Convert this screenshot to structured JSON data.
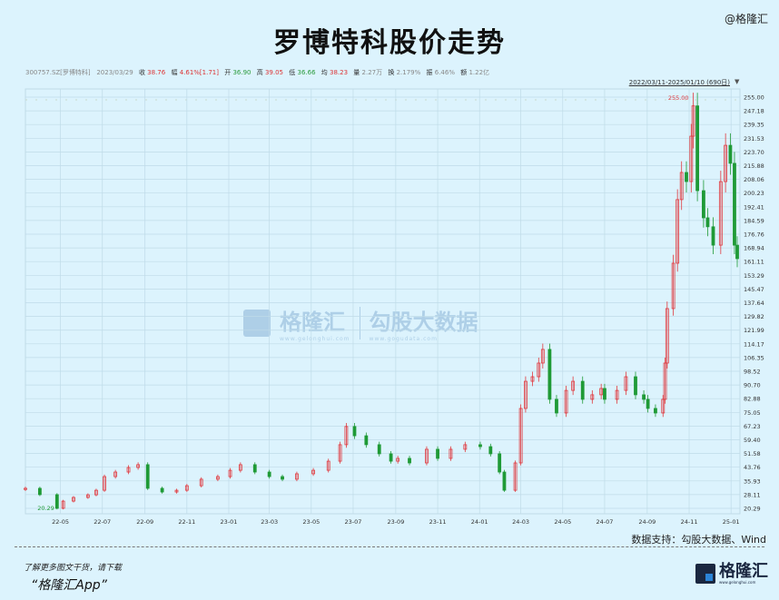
{
  "header": {
    "title": "罗博特科股价走势",
    "brand": "@格隆汇"
  },
  "info": {
    "code": "300757.SZ[罗博特科]",
    "date": "2023/03/29",
    "close_label": "收",
    "close": "38.76",
    "change_label": "幅",
    "change": "4.61%[1.71]",
    "open_label": "开",
    "open": "36.90",
    "high_label": "高",
    "high": "39.05",
    "low_label": "低",
    "low": "36.66",
    "avg_label": "均",
    "avg": "38.23",
    "vol_label": "量",
    "vol": "2.27万",
    "turnover_label": "换",
    "turnover": "2.179%",
    "amp_label": "振",
    "amp": "6.46%",
    "amount_label": "额",
    "amount": "1.22亿"
  },
  "range": {
    "label": "2022/03/11-2025/01/10 (690日)"
  },
  "watermark": {
    "brand": "格隆汇",
    "brand_url": "www.gelonghui.com",
    "partner": "勾股大数据",
    "partner_url": "www.gogudata.com"
  },
  "footer": {
    "source": "数据支持：勾股大数据、Wind",
    "promo": "了解更多图文干货，请下载",
    "app": "“格隆汇App”",
    "logo_text": "格隆汇",
    "logo_url": "www.gelonghui.com"
  },
  "colors": {
    "up": "#e0393e",
    "down": "#1f9a36",
    "grid": "#bfdbe8",
    "background": "#dcf3fd"
  },
  "chart_data": {
    "type": "candlestick",
    "title": "罗博特科股价走势",
    "ylim": [
      20.29,
      255.0
    ],
    "grid": true,
    "y_ticks": [
      "255.00",
      "247.18",
      "239.35",
      "231.53",
      "223.70",
      "215.88",
      "208.06",
      "200.23",
      "192.41",
      "184.59",
      "176.76",
      "168.94",
      "161.11",
      "153.29",
      "145.47",
      "137.64",
      "129.82",
      "121.99",
      "114.17",
      "106.35",
      "98.52",
      "90.70",
      "82.88",
      "75.05",
      "67.23",
      "59.40",
      "51.58",
      "43.76",
      "35.93",
      "28.11",
      "20.29"
    ],
    "x_ticks": [
      "22-05",
      "22-07",
      "22-09",
      "22-11",
      "23-01",
      "23-03",
      "23-05",
      "23-07",
      "23-09",
      "23-11",
      "24-01",
      "24-03",
      "24-05",
      "24-07",
      "24-09",
      "24-11",
      "25-01"
    ],
    "x_tick_dates": [
      "2022-05-01",
      "2022-07-01",
      "2022-09-01",
      "2022-11-01",
      "2023-01-01",
      "2023-03-01",
      "2023-05-01",
      "2023-07-01",
      "2023-09-01",
      "2023-11-01",
      "2024-01-01",
      "2024-03-01",
      "2024-05-01",
      "2024-07-01",
      "2024-09-01",
      "2024-11-01",
      "2025-01-01"
    ],
    "x_range": [
      "2022-03-11",
      "2025-01-10"
    ],
    "max_label": "255.00",
    "min_label": "20.29",
    "dates": [
      "2022-03-11",
      "2022-04-01",
      "2022-04-26",
      "2022-05-05",
      "2022-05-20",
      "2022-06-10",
      "2022-06-22",
      "2022-07-04",
      "2022-07-20",
      "2022-08-08",
      "2022-08-22",
      "2022-09-05",
      "2022-09-26",
      "2022-10-17",
      "2022-11-01",
      "2022-11-22",
      "2022-12-16",
      "2023-01-03",
      "2023-01-18",
      "2023-02-08",
      "2023-03-01",
      "2023-03-20",
      "2023-04-10",
      "2023-05-04",
      "2023-05-26",
      "2023-06-12",
      "2023-06-21",
      "2023-07-03",
      "2023-07-20",
      "2023-08-08",
      "2023-08-25",
      "2023-09-04",
      "2023-09-21",
      "2023-10-16",
      "2023-11-01",
      "2023-11-20",
      "2023-12-11",
      "2024-01-02",
      "2024-01-17",
      "2024-01-30",
      "2024-02-06",
      "2024-02-22",
      "2024-03-01",
      "2024-03-08",
      "2024-03-18",
      "2024-03-27",
      "2024-04-02",
      "2024-04-12",
      "2024-04-22",
      "2024-05-06",
      "2024-05-16",
      "2024-05-30",
      "2024-06-13",
      "2024-06-26",
      "2024-07-01",
      "2024-07-19",
      "2024-08-01",
      "2024-08-15",
      "2024-08-27",
      "2024-09-02",
      "2024-09-13",
      "2024-09-24",
      "2024-09-27",
      "2024-09-30",
      "2024-10-09",
      "2024-10-15",
      "2024-10-21",
      "2024-10-28",
      "2024-11-04",
      "2024-11-07",
      "2024-11-13",
      "2024-11-22",
      "2024-11-28",
      "2024-12-06",
      "2024-12-17",
      "2024-12-24",
      "2024-12-31",
      "2025-01-06",
      "2025-01-10"
    ],
    "close": [
      31.7,
      28.1,
      20.3,
      24.4,
      26.5,
      28.0,
      30.6,
      38.4,
      41.0,
      43.6,
      45.2,
      31.7,
      29.6,
      30.6,
      33.2,
      36.9,
      38.4,
      42.0,
      45.2,
      41.0,
      38.4,
      36.9,
      40.0,
      42.0,
      47.2,
      56.6,
      67.0,
      61.7,
      56.6,
      51.4,
      47.2,
      48.8,
      46.2,
      54.0,
      48.8,
      54.0,
      56.6,
      55.5,
      51.4,
      41.0,
      30.6,
      46.2,
      77.3,
      92.8,
      95.4,
      103.2,
      111.0,
      82.5,
      74.7,
      87.6,
      92.8,
      82.5,
      85.1,
      88.7,
      82.5,
      87.6,
      95.4,
      85.1,
      82.5,
      77.3,
      74.7,
      82.5,
      103.2,
      134.3,
      160.2,
      196.5,
      212.0,
      206.8,
      232.7,
      250.0,
      201.6,
      186.1,
      181.0,
      170.5,
      206.8,
      227.5,
      217.2,
      170.5,
      162.8
    ]
  }
}
